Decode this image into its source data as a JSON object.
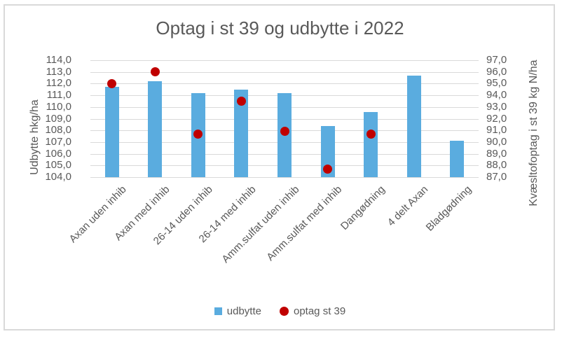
{
  "chart_data": {
    "type": "bar",
    "title": "Optag i st 39 og udbytte i 2022",
    "categories": [
      "Axan uden inhib",
      "Axan med inhib",
      "26-14 uden inhib",
      "26-14 med inhib",
      "Amm.sulfat uden inhib",
      "Amm.sulfat med inhib",
      "Dangødning",
      "4 delt Axan",
      "Bladgødning"
    ],
    "series": [
      {
        "name": "udbytte",
        "type": "bar",
        "axis": "left",
        "color": "#5AACDF",
        "values": [
          111.7,
          112.2,
          111.2,
          111.5,
          111.2,
          108.4,
          109.6,
          112.7,
          107.1
        ]
      },
      {
        "name": "optag st 39",
        "type": "scatter",
        "axis": "right",
        "color": "#C00000",
        "values": [
          95.0,
          96.0,
          90.7,
          93.5,
          90.9,
          87.7,
          90.7,
          null,
          null
        ]
      }
    ],
    "left_axis": {
      "title": "Udbytte hkg/ha",
      "min": 104,
      "max": 114,
      "step": 1,
      "tick_labels": [
        "114,0",
        "113,0",
        "112,0",
        "111,0",
        "110,0",
        "109,0",
        "108,0",
        "107,0",
        "106,0",
        "105,0",
        "104,0"
      ]
    },
    "right_axis": {
      "title": "Kvæsltofoptag i st 39 kg N/ha",
      "min": 87,
      "max": 97,
      "step": 1,
      "tick_labels": [
        "97,0",
        "96,0",
        "95,0",
        "94,0",
        "93,0",
        "92,0",
        "91,0",
        "90,0",
        "89,0",
        "88,0",
        "87,0"
      ]
    },
    "legend": {
      "position": "bottom",
      "entries": [
        "udbytte",
        "optag st 39"
      ]
    },
    "grid": true,
    "colors": {
      "text": "#595959",
      "gridline": "#D9D9D9",
      "frame_border": "#D9D9D9",
      "bar": "#5AACDF",
      "dot": "#C00000"
    }
  }
}
